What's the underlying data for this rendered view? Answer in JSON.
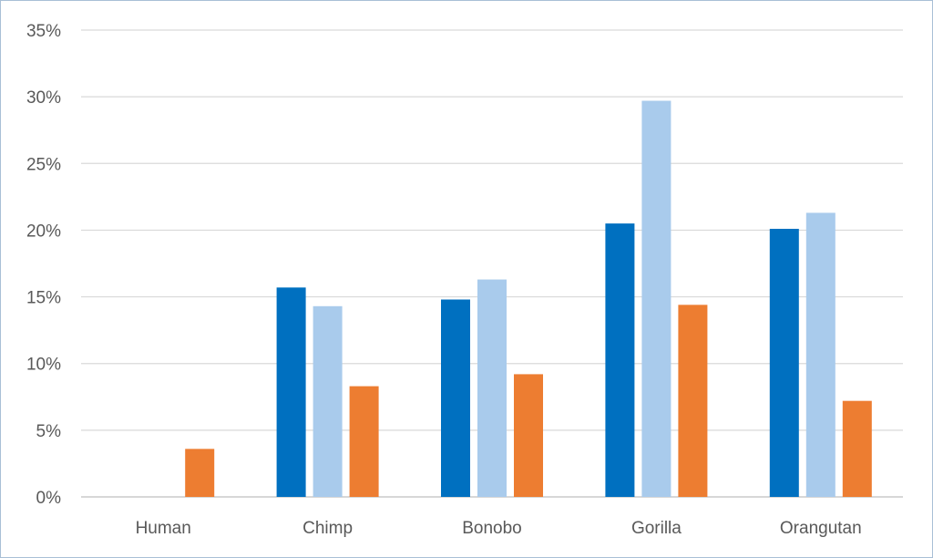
{
  "chart_data": {
    "type": "bar",
    "title": "",
    "xlabel": "",
    "ylabel": "",
    "categories": [
      "Human",
      "Chimp",
      "Bonobo",
      "Gorilla",
      "Orangutan"
    ],
    "series": [
      {
        "color": "#0070c0",
        "values": [
          null,
          15.7,
          14.8,
          20.5,
          20.1
        ]
      },
      {
        "color": "#a9cbec",
        "values": [
          null,
          14.3,
          16.3,
          29.7,
          21.3
        ]
      },
      {
        "color": "#ed7d31",
        "values": [
          3.6,
          8.3,
          9.2,
          14.4,
          7.2
        ]
      }
    ],
    "ylim": [
      0,
      35
    ],
    "yticks": [
      0,
      5,
      10,
      15,
      20,
      25,
      30,
      35
    ],
    "ytick_labels": [
      "0%",
      "5%",
      "10%",
      "15%",
      "20%",
      "25%",
      "30%",
      "35%"
    ],
    "grid": true,
    "legend": "none"
  }
}
